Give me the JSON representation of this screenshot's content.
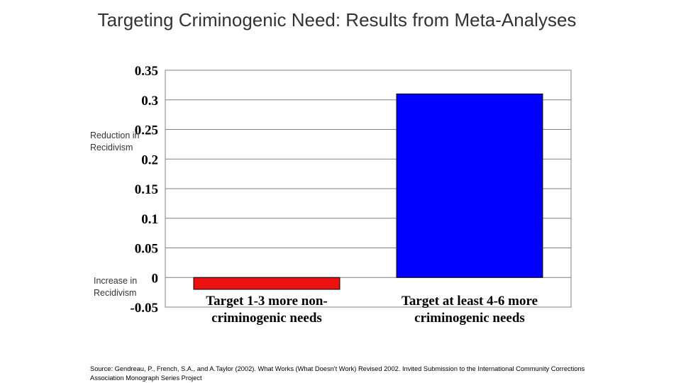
{
  "slide": {
    "title": "Targeting Criminogenic Need: Results from Meta-Analyses",
    "source": "Source: Gendreau, P., French, S.A., and A.Taylor (2002). What Works (What Doesn't Work) Revised 2002. Invited Submission to the International Community Corrections Association Monograph Series Project"
  },
  "chart_data": {
    "type": "bar",
    "title": "",
    "xlabel": "",
    "ylabel": "",
    "annotations": {
      "reduction": "Reduction in Recidivism",
      "increase": "Increase in Recidivism"
    },
    "categories": [
      [
        "Target 1-3 more non-",
        "criminogenic needs"
      ],
      [
        "Target at least 4-6 more",
        "criminogenic needs"
      ]
    ],
    "values": [
      -0.02,
      0.31
    ],
    "bar_colors": [
      "#ee1111",
      "#0000ff"
    ],
    "ylim": [
      -0.05,
      0.35
    ],
    "yticks": [
      -0.05,
      0,
      0.05,
      0.1,
      0.15,
      0.2,
      0.25,
      0.3,
      0.35
    ],
    "ytick_labels": [
      "-0.05",
      "0",
      "0.05",
      "0.1",
      "0.15",
      "0.2",
      "0.25",
      "0.3",
      "0.35"
    ],
    "grid": true,
    "legend": "none"
  }
}
